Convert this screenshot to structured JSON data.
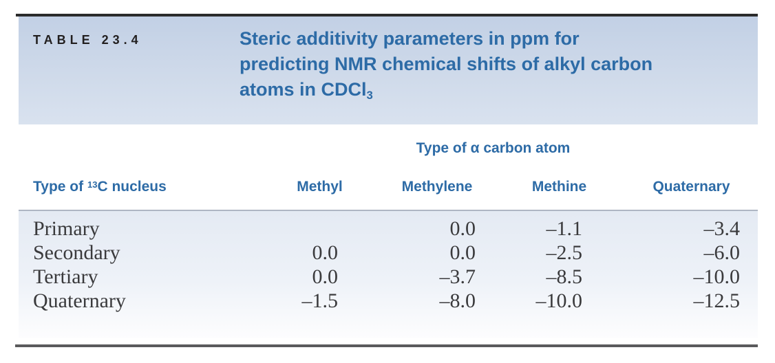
{
  "table": {
    "label": "TABLE 23.4",
    "title": {
      "line1": "Steric additivity parameters in ppm for",
      "line2": "predicting NMR chemical shifts of alkyl carbon",
      "line3_main": "atoms in CDCl",
      "line3_sub": "3"
    },
    "group_header": "Type of α carbon atom",
    "row_header": {
      "pre": "Type of ",
      "sup": "13",
      "post": "C nucleus"
    },
    "columns": [
      "Methyl",
      "Methylene",
      "Methine",
      "Quaternary"
    ],
    "rows": [
      {
        "label": "Primary",
        "values": [
          "",
          "0.0",
          "–1.1",
          "–3.4"
        ]
      },
      {
        "label": "Secondary",
        "values": [
          "0.0",
          "0.0",
          "–2.5",
          "–6.0"
        ]
      },
      {
        "label": "Tertiary",
        "values": [
          "0.0",
          "–3.7",
          "–8.5",
          "–10.0"
        ]
      },
      {
        "label": "Quaternary",
        "values": [
          "–1.5",
          "–8.0",
          "–10.0",
          "–12.5"
        ]
      }
    ],
    "colors": {
      "heading_blue": "#2d6ba6",
      "header_bg_top": "#c2d0e5",
      "header_bg_bottom": "#d9e2ef",
      "data_bg_top": "#e4eaf3",
      "data_bg_bottom": "#fdfdfe",
      "top_rule": "#2b2b2b",
      "bottom_rule": "#5a5a5c",
      "body_text": "#3a3a3c",
      "table_number_text": "#221f1f"
    }
  }
}
